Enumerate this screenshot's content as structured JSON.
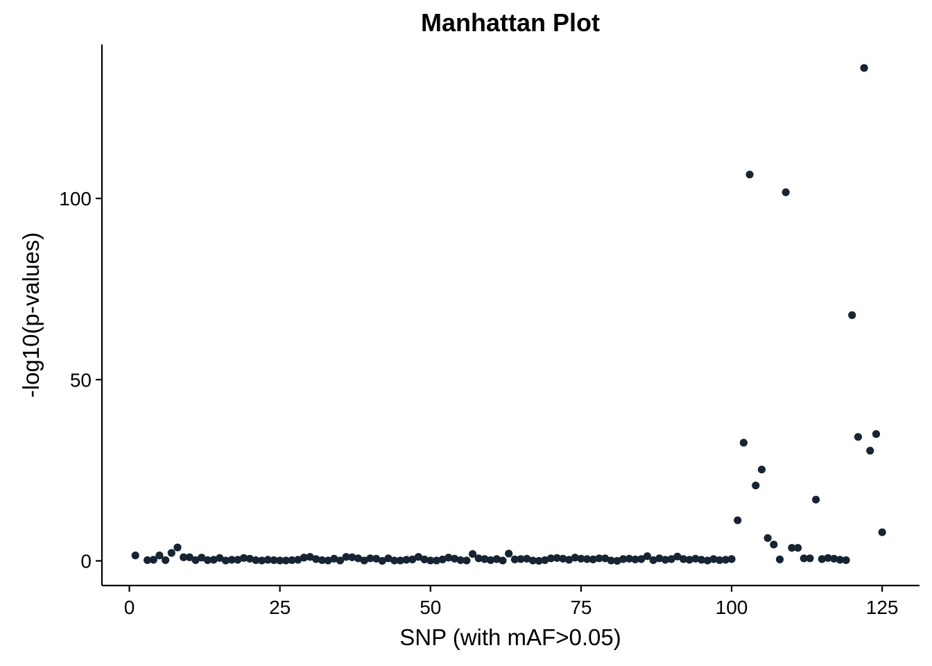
{
  "chart_data": {
    "type": "scatter",
    "title": "Manhattan Plot",
    "xlabel": "SNP (with mAF>0.05)",
    "ylabel": "-log10(p-values)",
    "xlim": [
      -4.55,
      131.2
    ],
    "ylim": [
      -6.8,
      142.5
    ],
    "xticks": [
      0,
      25,
      50,
      75,
      100,
      125
    ],
    "yticks": [
      0,
      50,
      100
    ],
    "grid": false,
    "legend": "none",
    "point_color": "#162433",
    "series": [
      {
        "x": [
          1,
          3,
          4,
          5,
          6,
          7,
          8,
          9,
          10,
          11,
          12,
          13,
          14,
          15,
          16,
          17,
          18,
          19,
          20,
          21,
          22,
          23,
          24,
          25,
          26,
          27,
          28,
          29,
          30,
          31,
          32,
          33,
          34,
          35,
          36,
          37,
          38,
          39,
          40,
          41,
          42,
          43,
          44,
          45,
          46,
          47,
          48,
          49,
          50,
          51,
          52,
          53,
          54,
          55,
          56,
          57,
          58,
          59,
          60,
          61,
          62,
          63,
          64,
          65,
          66,
          67,
          68,
          69,
          70,
          71,
          72,
          73,
          74,
          75,
          76,
          77,
          78,
          79,
          80,
          81,
          82,
          83,
          84,
          85,
          86,
          87,
          88,
          89,
          90,
          91,
          92,
          93,
          94,
          95,
          96,
          97,
          98,
          99,
          100,
          101,
          102,
          103,
          104,
          105,
          106,
          107,
          108,
          109,
          110,
          111,
          112,
          113,
          114,
          115,
          116,
          117,
          118,
          119,
          120,
          121,
          122,
          123,
          124,
          125
        ],
        "y": [
          1.5,
          0.2,
          0.3,
          1.5,
          0.2,
          2.2,
          3.7,
          1.0,
          1.0,
          0.2,
          0.9,
          0.2,
          0.3,
          0.8,
          0.1,
          0.3,
          0.3,
          0.8,
          0.6,
          0.2,
          0.1,
          0.3,
          0.2,
          0.1,
          0.1,
          0.2,
          0.3,
          0.9,
          1.1,
          0.5,
          0.2,
          0.1,
          0.6,
          0.1,
          1.1,
          1.0,
          0.7,
          0.1,
          0.7,
          0.6,
          0.0,
          0.7,
          0.1,
          0.1,
          0.3,
          0.4,
          1.1,
          0.4,
          0.1,
          0.1,
          0.4,
          0.9,
          0.6,
          0.2,
          0.1,
          1.9,
          0.7,
          0.5,
          0.2,
          0.5,
          0.1,
          2.0,
          0.4,
          0.5,
          0.6,
          0.1,
          0.0,
          0.2,
          0.7,
          0.8,
          0.6,
          0.3,
          0.9,
          0.6,
          0.5,
          0.4,
          0.7,
          0.7,
          0.1,
          0.0,
          0.5,
          0.6,
          0.4,
          0.5,
          1.3,
          0.2,
          0.7,
          0.3,
          0.5,
          1.2,
          0.5,
          0.3,
          0.6,
          0.3,
          0.1,
          0.5,
          0.2,
          0.3,
          0.5,
          11.2,
          32.6,
          106.6,
          20.8,
          25.2,
          6.3,
          4.5,
          0.4,
          101.7,
          3.6,
          3.6,
          0.7,
          0.7,
          16.9,
          0.5,
          0.8,
          0.6,
          0.3,
          0.2,
          67.8,
          34.2,
          136.0,
          30.4,
          35.0,
          7.9
        ]
      }
    ]
  }
}
